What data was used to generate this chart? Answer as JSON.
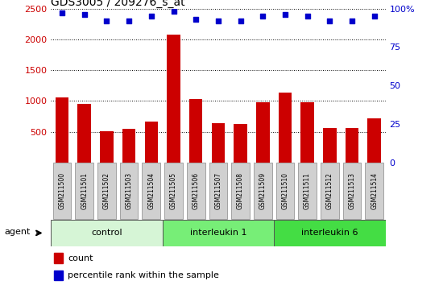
{
  "title": "GDS3005 / 209276_s_at",
  "samples": [
    "GSM211500",
    "GSM211501",
    "GSM211502",
    "GSM211503",
    "GSM211504",
    "GSM211505",
    "GSM211506",
    "GSM211507",
    "GSM211508",
    "GSM211509",
    "GSM211510",
    "GSM211511",
    "GSM211512",
    "GSM211513",
    "GSM211514"
  ],
  "counts": [
    1060,
    950,
    510,
    550,
    660,
    2080,
    1030,
    640,
    620,
    980,
    1130,
    975,
    565,
    560,
    720
  ],
  "percentiles": [
    97,
    96,
    92,
    92,
    95,
    98,
    93,
    92,
    92,
    95,
    96,
    95,
    92,
    92,
    95
  ],
  "bar_color": "#cc0000",
  "dot_color": "#0000cc",
  "ylim_left": [
    0,
    2500
  ],
  "ylim_right": [
    0,
    100
  ],
  "yticks_left": [
    500,
    1000,
    1500,
    2000,
    2500
  ],
  "yticks_right": [
    0,
    25,
    50,
    75,
    100
  ],
  "groups": [
    {
      "label": "control",
      "start": 0,
      "end": 5,
      "color": "#d6f5d6"
    },
    {
      "label": "interleukin 1",
      "start": 5,
      "end": 10,
      "color": "#77ee77"
    },
    {
      "label": "interleukin 6",
      "start": 10,
      "end": 15,
      "color": "#44dd44"
    }
  ],
  "agent_label": "agent",
  "legend_count_label": "count",
  "legend_pct_label": "percentile rank within the sample",
  "tick_label_color_left": "#cc0000",
  "tick_label_color_right": "#0000cc",
  "title_color": "#000000",
  "sample_box_color": "#d0d0d0",
  "sample_box_edge": "#888888"
}
